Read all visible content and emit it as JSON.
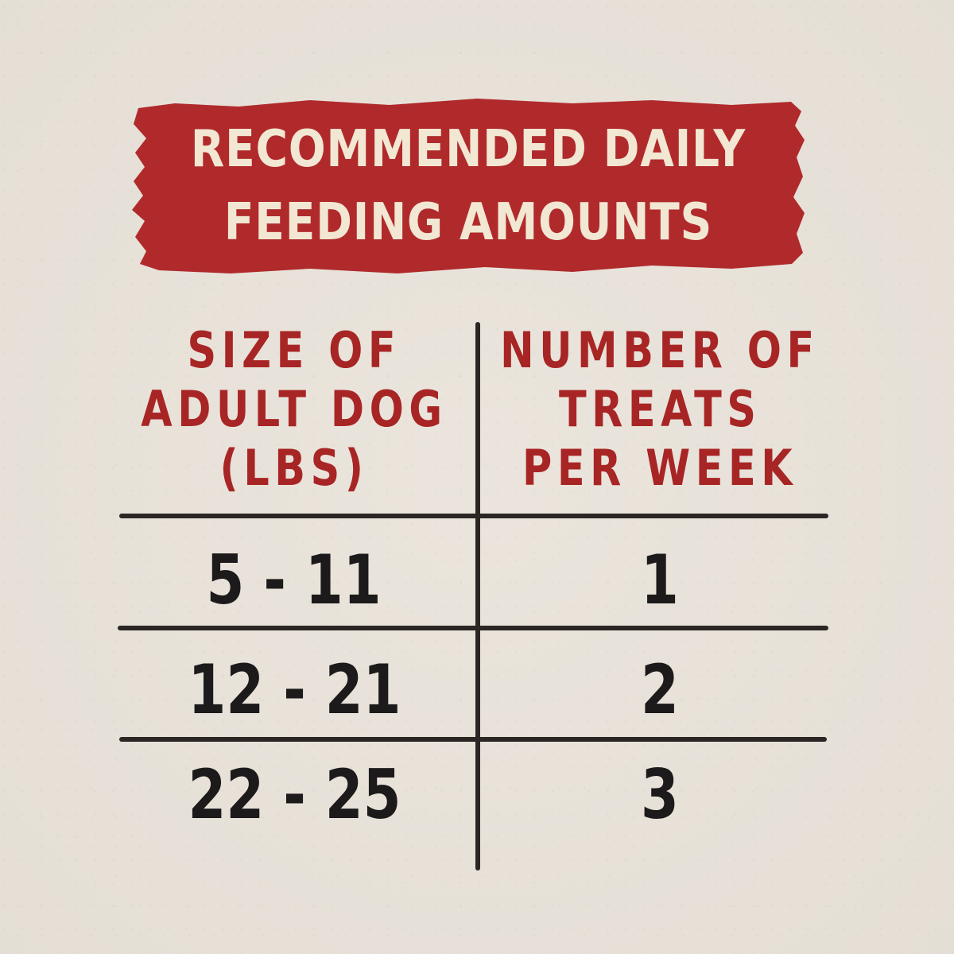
{
  "banner": {
    "line1": "RECOMMENDED DAILY",
    "line2": "FEEDING AMOUNTS",
    "color": "#b02a2c",
    "text_color": "#f2e7d3"
  },
  "table": {
    "header_color": "#a82525",
    "headers": [
      {
        "lines": [
          "SIZE OF",
          "ADULT DOG",
          "(LBS)"
        ]
      },
      {
        "lines": [
          "NUMBER OF",
          "TREATS",
          "PER WEEK"
        ]
      }
    ],
    "rows": [
      {
        "size": "5 - 11",
        "treats": "1"
      },
      {
        "size": "12 - 21",
        "treats": "2"
      },
      {
        "size": "22 - 25",
        "treats": "3"
      }
    ]
  }
}
